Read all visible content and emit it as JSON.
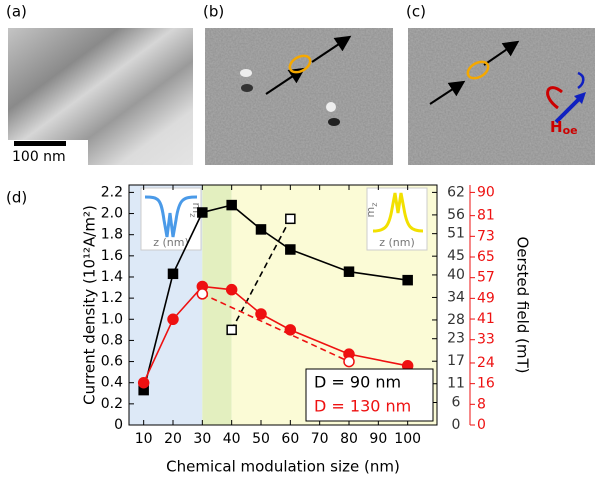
{
  "panels": {
    "a": "(a)",
    "b": "(b)",
    "c": "(c)",
    "d": "(d)",
    "scale_bar": "100 nm",
    "hoe_label": "H",
    "hoe_subscript": "oe"
  },
  "chart_data": {
    "type": "line",
    "xlabel": "Chemical modulation size (nm)",
    "ylabel": "Current density (10¹²A/m²)",
    "y3label": "Oersted field (mT)",
    "xlim": [
      5,
      110
    ],
    "xticks": [
      10,
      20,
      30,
      40,
      50,
      60,
      70,
      80,
      90,
      100
    ],
    "ylim": [
      0,
      2.27
    ],
    "yticks": [
      0,
      0.2,
      0.4,
      0.6,
      0.8,
      {
        "value": 1,
        "label": "1.0"
      },
      1.2,
      1.4,
      1.6,
      1.8,
      {
        "value": 2,
        "label": "2.0"
      },
      2.2
    ],
    "y2lim": [
      0,
      63.97
    ],
    "y2ticks": [
      0,
      6,
      11,
      17,
      23,
      28,
      34,
      40,
      45,
      51,
      56,
      62
    ],
    "y2color": "#333333",
    "y3lim": [
      0,
      92.86
    ],
    "y3ticks": [
      0,
      8,
      16,
      24,
      33,
      41,
      49,
      57,
      65,
      73,
      81,
      90
    ],
    "y3color": "#ee1111",
    "shaded_regions": [
      {
        "from": 5,
        "to": 30,
        "color": "#dde9f7"
      },
      {
        "from": 30,
        "to": 40,
        "color": "#e3efbf"
      },
      {
        "from": 40,
        "to": 110,
        "color": "#fbfbd6"
      }
    ],
    "inset_labels": {
      "mz": "m",
      "mz_sub": "z",
      "z": "z (nm)"
    },
    "legend": "lower right",
    "series": [
      {
        "name": "D = 90 nm",
        "color": "#000000",
        "marker": "square",
        "filled": true,
        "dashed": false,
        "x": [
          10,
          20,
          30,
          40,
          50,
          60,
          80,
          100
        ],
        "values": [
          0.33,
          1.43,
          2.01,
          2.08,
          1.85,
          1.66,
          1.45,
          1.37
        ]
      },
      {
        "color": "#000000",
        "marker": "square",
        "filled": false,
        "dashed": true,
        "x": [
          40,
          60
        ],
        "values": [
          0.9,
          1.95
        ]
      },
      {
        "name": "D = 130 nm",
        "color": "#ee1111",
        "marker": "circle",
        "filled": true,
        "dashed": false,
        "x": [
          10,
          20,
          30,
          40,
          50,
          60,
          80,
          100
        ],
        "values": [
          0.4,
          1.0,
          1.31,
          1.28,
          1.05,
          0.9,
          0.67,
          0.56
        ]
      },
      {
        "color": "#ee1111",
        "marker": "circle",
        "filled": false,
        "dashed": true,
        "x": [
          30,
          80
        ],
        "values": [
          1.24,
          0.6
        ]
      }
    ]
  }
}
